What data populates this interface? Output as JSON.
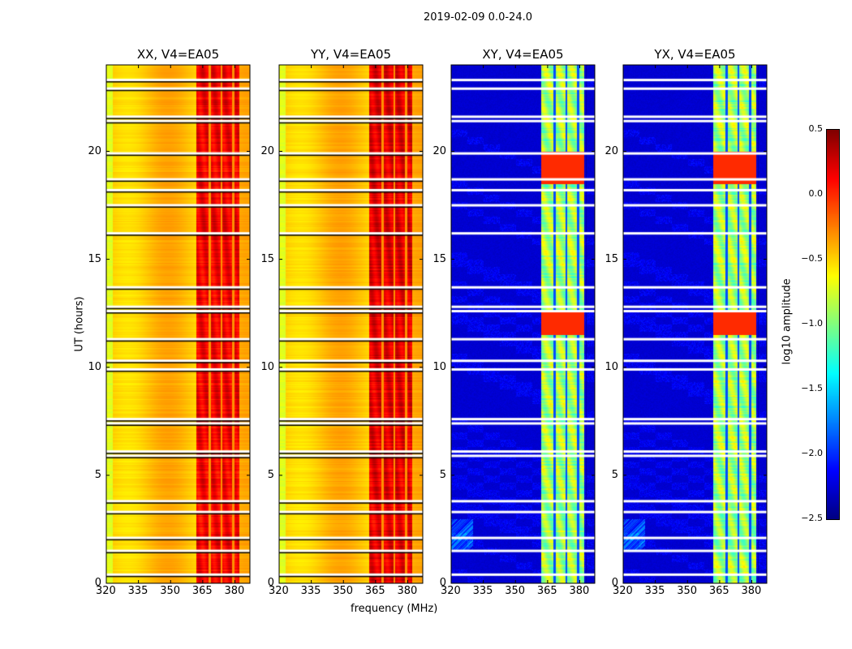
{
  "chart_data": {
    "type": "heatmap",
    "suptitle": "2019-02-09 0.0-24.0",
    "xlabel": "frequency (MHz)",
    "ylabel": "UT (hours)",
    "xlim": [
      320,
      387
    ],
    "ylim": [
      0,
      24
    ],
    "xticks": [
      "320",
      "335",
      "350",
      "365",
      "380"
    ],
    "yticks": [
      "0",
      "5",
      "10",
      "15",
      "20"
    ],
    "panels": [
      {
        "title": "XX, V4=EA05",
        "kind": "auto",
        "background": -0.45,
        "band_level": 0.15
      },
      {
        "title": "YY, V4=EA05",
        "kind": "auto",
        "background": -0.45,
        "band_level": 0.2
      },
      {
        "title": "XY, V4=EA05",
        "kind": "cross",
        "background": -2.3,
        "band_level": -0.9
      },
      {
        "title": "YX, V4=EA05",
        "kind": "cross",
        "background": -2.3,
        "band_level": -0.9
      }
    ],
    "band_mhz": [
      362,
      382
    ],
    "band_gaps_mhz": [
      368,
      373.5,
      379
    ],
    "flagged_hours": [
      0.4,
      1.5,
      2.1,
      3.3,
      3.8,
      5.9,
      6.1,
      7.4,
      7.6,
      9.9,
      10.3,
      11.3,
      12.6,
      12.8,
      13.7,
      16.2,
      17.5,
      18.2,
      18.7,
      19.9,
      21.4,
      21.6,
      22.9,
      23.3
    ],
    "colorbar": {
      "label": "log10 amplitude",
      "range": [
        -2.5,
        0.5
      ],
      "ticks": [
        "0.5",
        "0.0",
        "−0.5",
        "−1.0",
        "−1.5",
        "−2.0",
        "−2.5"
      ],
      "colormap": "jet"
    }
  }
}
